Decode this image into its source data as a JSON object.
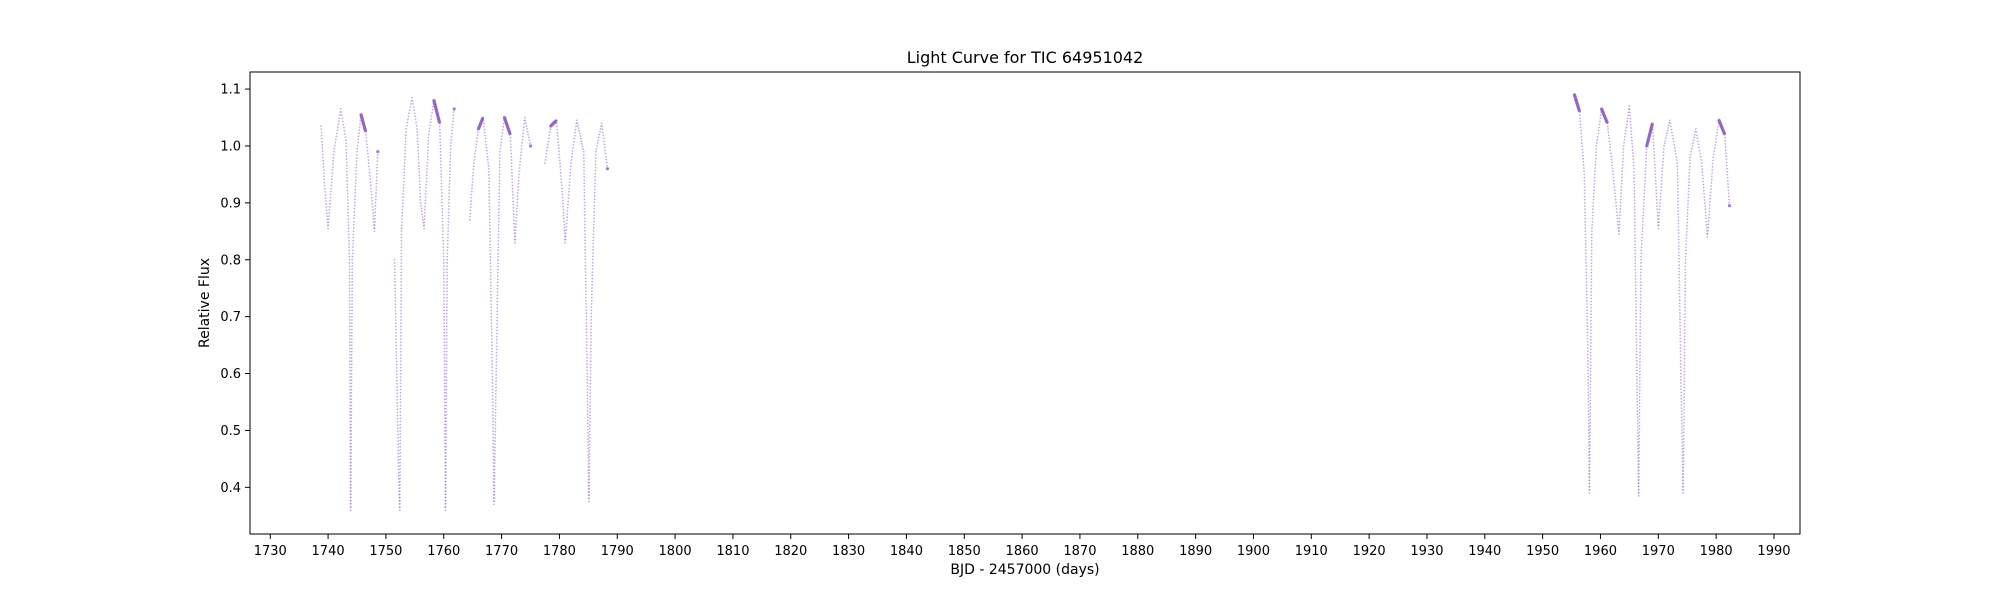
{
  "chart_data": {
    "type": "scatter",
    "title": "Light Curve for TIC 64951042",
    "xlabel": "BJD - 2457000 (days)",
    "ylabel": "Relative Flux",
    "xlim": [
      1726.5,
      1994.5
    ],
    "ylim": [
      0.318,
      1.13
    ],
    "x_ticks": [
      1730,
      1740,
      1750,
      1760,
      1770,
      1780,
      1790,
      1800,
      1810,
      1820,
      1830,
      1840,
      1850,
      1860,
      1870,
      1880,
      1890,
      1900,
      1910,
      1920,
      1930,
      1940,
      1950,
      1960,
      1970,
      1980,
      1990
    ],
    "y_ticks": [
      0.4,
      0.5,
      0.6,
      0.7,
      0.8,
      0.9,
      1.0,
      1.1
    ],
    "grid": false,
    "marker_color": "#9467bd",
    "series": [
      {
        "segments": [
          {
            "x": [
              1738.8,
              1739.4,
              1740.0,
              1741.0,
              1742.2,
              1743.1,
              1743.7,
              1743.9,
              1744.2,
              1745.0,
              1745.7,
              1746.5,
              1747.5,
              1748.0,
              1748.6
            ],
            "y": [
              1.035,
              0.93,
              0.855,
              0.99,
              1.065,
              1.01,
              0.8,
              0.36,
              0.8,
              0.99,
              1.055,
              1.025,
              0.92,
              0.85,
              0.99
            ]
          },
          {
            "x": [
              1751.5,
              1752.2,
              1752.4,
              1752.7,
              1753.5,
              1754.5,
              1755.4,
              1756.0,
              1756.6,
              1757.4,
              1758.3,
              1759.3,
              1760.0,
              1760.3,
              1760.6,
              1761.2,
              1761.8
            ],
            "y": [
              0.8,
              0.42,
              0.36,
              0.85,
              1.03,
              1.085,
              1.03,
              0.9,
              0.855,
              1.02,
              1.08,
              1.04,
              0.8,
              0.36,
              0.8,
              1.0,
              1.065
            ]
          },
          {
            "x": [
              1764.5,
              1765.2,
              1766.0,
              1766.8,
              1767.8,
              1768.4,
              1768.7,
              1769.1,
              1769.7,
              1770.5,
              1771.5,
              1772.3,
              1773.0,
              1774.0,
              1775.0
            ],
            "y": [
              0.87,
              0.97,
              1.03,
              1.05,
              0.96,
              0.6,
              0.37,
              0.62,
              0.99,
              1.05,
              1.02,
              0.83,
              0.95,
              1.05,
              1.0
            ]
          },
          {
            "x": [
              1777.5,
              1778.5,
              1779.5,
              1780.5,
              1781.0,
              1782.0,
              1783.0,
              1784.2,
              1784.8,
              1785.1,
              1785.5,
              1786.3,
              1787.3,
              1788.3
            ],
            "y": [
              0.97,
              1.035,
              1.045,
              0.92,
              0.83,
              0.97,
              1.045,
              0.99,
              0.6,
              0.375,
              0.7,
              0.99,
              1.04,
              0.96
            ]
          },
          {
            "x": [
              1955.5,
              1956.4,
              1957.2,
              1957.8,
              1958.1,
              1958.5,
              1959.3,
              1960.2,
              1961.2,
              1962.2,
              1963.2,
              1964.0,
              1965.0,
              1965.8,
              1966.3,
              1966.6,
              1967.0,
              1968.0,
              1969.0,
              1970.0,
              1971.0,
              1972.0,
              1973.3,
              1973.9,
              1974.3,
              1974.7,
              1975.5,
              1976.5,
              1977.5,
              1978.5,
              1979.5,
              1980.5,
              1981.5,
              1982.3
            ],
            "y": [
              1.09,
              1.06,
              0.95,
              0.65,
              0.39,
              0.85,
              1.0,
              1.065,
              1.04,
              0.95,
              0.845,
              1.0,
              1.07,
              0.96,
              0.6,
              0.385,
              0.8,
              1.0,
              1.04,
              0.855,
              1.0,
              1.045,
              0.97,
              0.6,
              0.39,
              0.8,
              0.98,
              1.03,
              0.97,
              0.84,
              0.98,
              1.045,
              1.02,
              0.895
            ]
          }
        ]
      }
    ]
  }
}
